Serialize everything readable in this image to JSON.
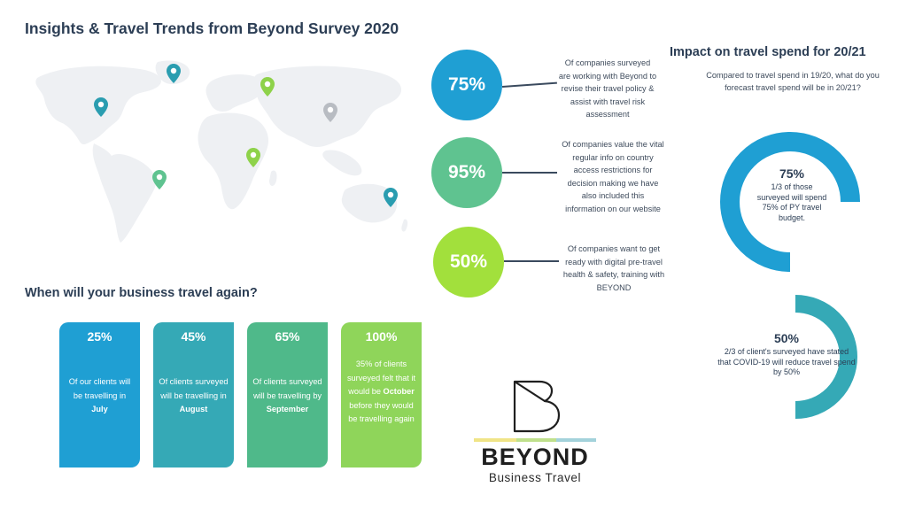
{
  "title": "Insights & Travel Trends from Beyond Survey 2020",
  "colors": {
    "blue": "#1f9fd3",
    "teal": "#35a9b6",
    "green": "#5fc390",
    "lime": "#a2e03c",
    "map_land": "#eef0f3",
    "pin_teal": "#2a9db0",
    "pin_green": "#8ed24a",
    "pin_gray": "#b8bcc2"
  },
  "stats": [
    {
      "value": "75%",
      "text": "Of companies surveyed are working with Beyond to revise their travel policy & assist with travel risk assessment"
    },
    {
      "value": "95%",
      "text": "Of companies value the vital  regular info on country access restrictions for decision making we have also included this information on our website"
    },
    {
      "value": "50%",
      "text": "Of companies want to get ready with digital pre-travel health & safety, training with BEYOND"
    }
  ],
  "impact": {
    "title": "Impact on travel spend for 20/21",
    "subtitle": "Compared to travel spend in 19/20, what do you forecast travel spend will be in 20/21?",
    "items": [
      {
        "value": "75%",
        "text": "1/3 of those surveyed will spend 75% of PY travel budget.",
        "fraction": 0.75
      },
      {
        "value": "50%",
        "text": "2/3 of client's surveyed have stated that COVID-19 will reduce travel spend by 50%",
        "fraction": 0.5
      }
    ]
  },
  "travel_again": {
    "title": "When will your business travel again?",
    "cards": [
      {
        "value": "25%",
        "text_before": "Of our clients will  be travelling in",
        "highlight": "July",
        "text_after": ""
      },
      {
        "value": "45%",
        "text_before": "Of clients surveyed will be travelling in",
        "highlight": "August",
        "text_after": ""
      },
      {
        "value": "65%",
        "text_before": "Of clients surveyed will be travelling by",
        "highlight": "September",
        "text_after": ""
      },
      {
        "value": "100%",
        "text_before": "35% of clients surveyed felt that it would be",
        "highlight": "October",
        "text_after": "before they would be travelling again"
      }
    ]
  },
  "brand": {
    "name": "BEYOND",
    "sub": "Business Travel"
  },
  "map_pins": [
    {
      "icon": "map-pin-icon",
      "color": "teal"
    },
    {
      "icon": "map-pin-icon",
      "color": "teal"
    },
    {
      "icon": "map-pin-icon",
      "color": "green"
    },
    {
      "icon": "map-pin-icon",
      "color": "gray"
    },
    {
      "icon": "map-pin-icon",
      "color": "green"
    },
    {
      "icon": "map-pin-icon",
      "color": "green"
    },
    {
      "icon": "map-pin-icon",
      "color": "teal"
    }
  ]
}
